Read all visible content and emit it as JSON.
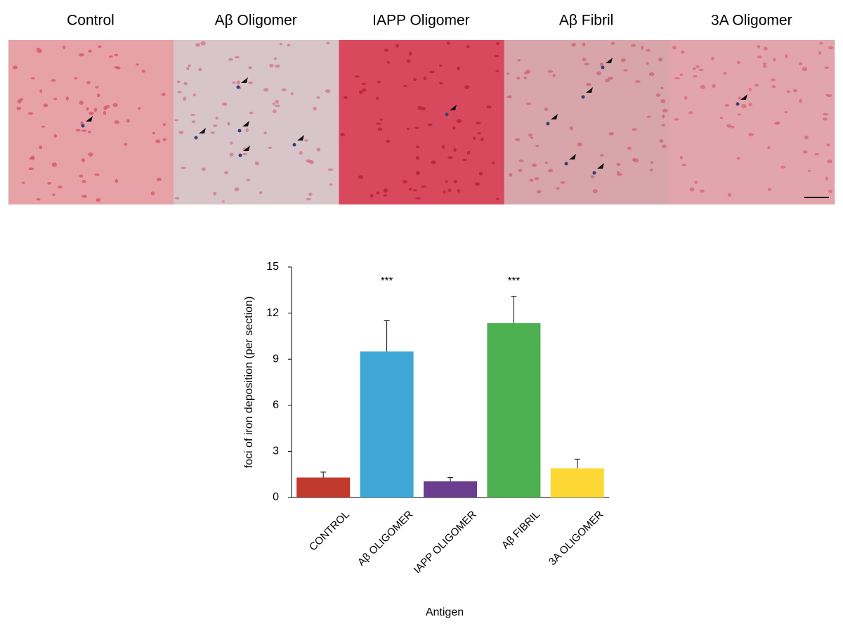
{
  "panels": [
    "Control",
    "Aβ Oligomer",
    "IAPP Oligomer",
    "Aβ Fibril",
    "3A Oligomer"
  ],
  "chart_data": {
    "type": "bar",
    "categories": [
      "CONTROL",
      "Aβ OLIGOMER",
      "IAPP OLIGOMER",
      "Aβ FIBRIL",
      "3A OLIGOMER"
    ],
    "values": [
      1.3,
      9.5,
      1.05,
      11.35,
      1.9
    ],
    "errors": [
      0.35,
      2.0,
      0.25,
      1.75,
      0.6
    ],
    "colors": [
      "#c0392b",
      "#3fa7d6",
      "#6a3d8f",
      "#4caf50",
      "#fdd835"
    ],
    "annotations": [
      {
        "text": "***",
        "category": "Aβ OLIGOMER"
      },
      {
        "text": "***",
        "category": "Aβ FIBRIL"
      }
    ],
    "ylabel": "foci of iron deposition (per section)",
    "xlabel": "Antigen",
    "ylim": [
      0,
      15
    ],
    "yticks": [
      0,
      3,
      6,
      9,
      12,
      15
    ]
  }
}
